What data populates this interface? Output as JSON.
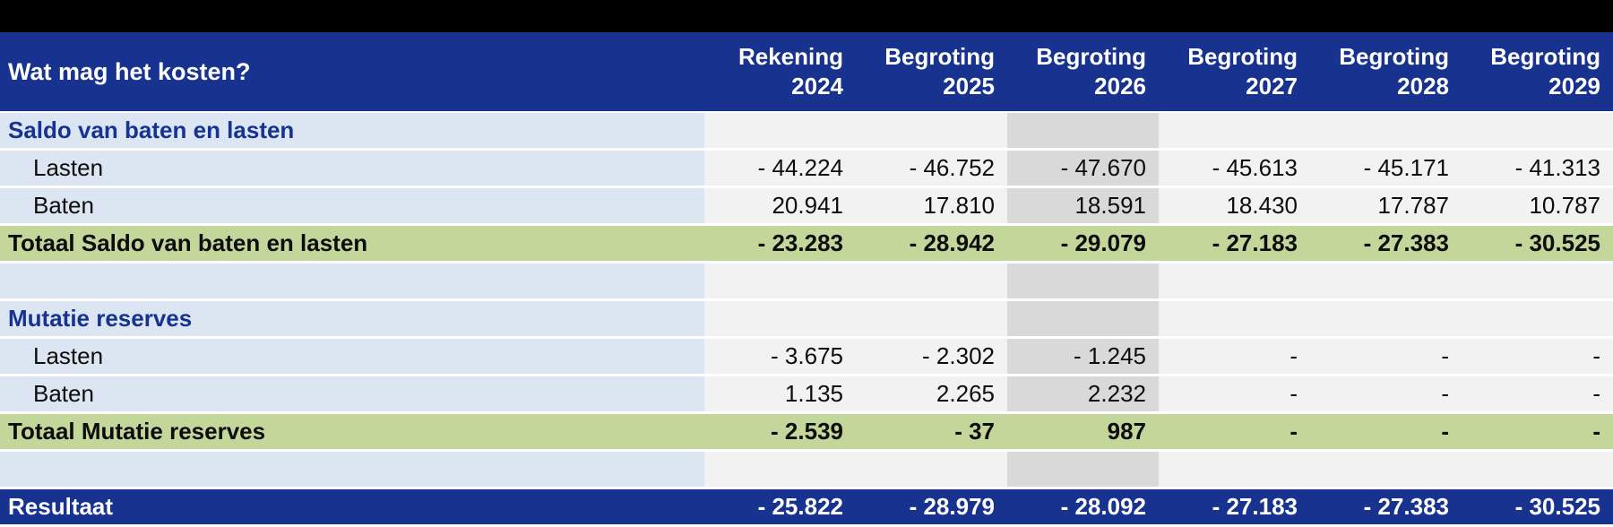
{
  "table": {
    "title": "Wat mag het kosten?",
    "columns": [
      {
        "label": "Rekening",
        "year": "2024",
        "highlight": false
      },
      {
        "label": "Begroting",
        "year": "2025",
        "highlight": false
      },
      {
        "label": "Begroting",
        "year": "2026",
        "highlight": true
      },
      {
        "label": "Begroting",
        "year": "2027",
        "highlight": false
      },
      {
        "label": "Begroting",
        "year": "2028",
        "highlight": false
      },
      {
        "label": "Begroting",
        "year": "2029",
        "highlight": false
      }
    ],
    "rows": [
      {
        "type": "section",
        "label": "Saldo van baten en lasten",
        "values": [
          "",
          "",
          "",
          "",
          "",
          ""
        ]
      },
      {
        "type": "data",
        "label": "Lasten",
        "values": [
          "- 44.224",
          "- 46.752",
          "- 47.670",
          "- 45.613",
          "- 45.171",
          "- 41.313"
        ]
      },
      {
        "type": "data",
        "label": "Baten",
        "values": [
          "20.941",
          "17.810",
          "18.591",
          "18.430",
          "17.787",
          "10.787"
        ]
      },
      {
        "type": "total",
        "label": "Totaal Saldo van baten en lasten",
        "values": [
          "- 23.283",
          "- 28.942",
          "- 29.079",
          "- 27.183",
          "- 27.383",
          "- 30.525"
        ]
      },
      {
        "type": "spacer",
        "label": "",
        "values": [
          "",
          "",
          "",
          "",
          "",
          ""
        ]
      },
      {
        "type": "section",
        "label": "Mutatie reserves",
        "values": [
          "",
          "",
          "",
          "",
          "",
          ""
        ]
      },
      {
        "type": "data",
        "label": "Lasten",
        "values": [
          "- 3.675",
          "- 2.302",
          "- 1.245",
          "-",
          "-",
          "-"
        ]
      },
      {
        "type": "data",
        "label": "Baten",
        "values": [
          "1.135",
          "2.265",
          "2.232",
          "-",
          "-",
          "-"
        ]
      },
      {
        "type": "total",
        "label": "Totaal Mutatie reserves",
        "values": [
          "- 2.539",
          "- 37",
          "987",
          "-",
          "-",
          "-"
        ]
      },
      {
        "type": "spacer",
        "label": "",
        "values": [
          "",
          "",
          "",
          "",
          "",
          ""
        ]
      },
      {
        "type": "result",
        "label": "Resultaat",
        "values": [
          "- 25.822",
          "- 28.979",
          "- 28.092",
          "- 27.183",
          "- 27.383",
          "- 30.525"
        ]
      }
    ]
  },
  "colors": {
    "header_blue": "#17338F",
    "light_blue": "#DCE6F2",
    "total_green": "#C4D79B",
    "highlight_column_gray": "#D9D9D9",
    "numeric_cell_gray": "#F2F2F2",
    "top_bar_black": "#000000"
  }
}
